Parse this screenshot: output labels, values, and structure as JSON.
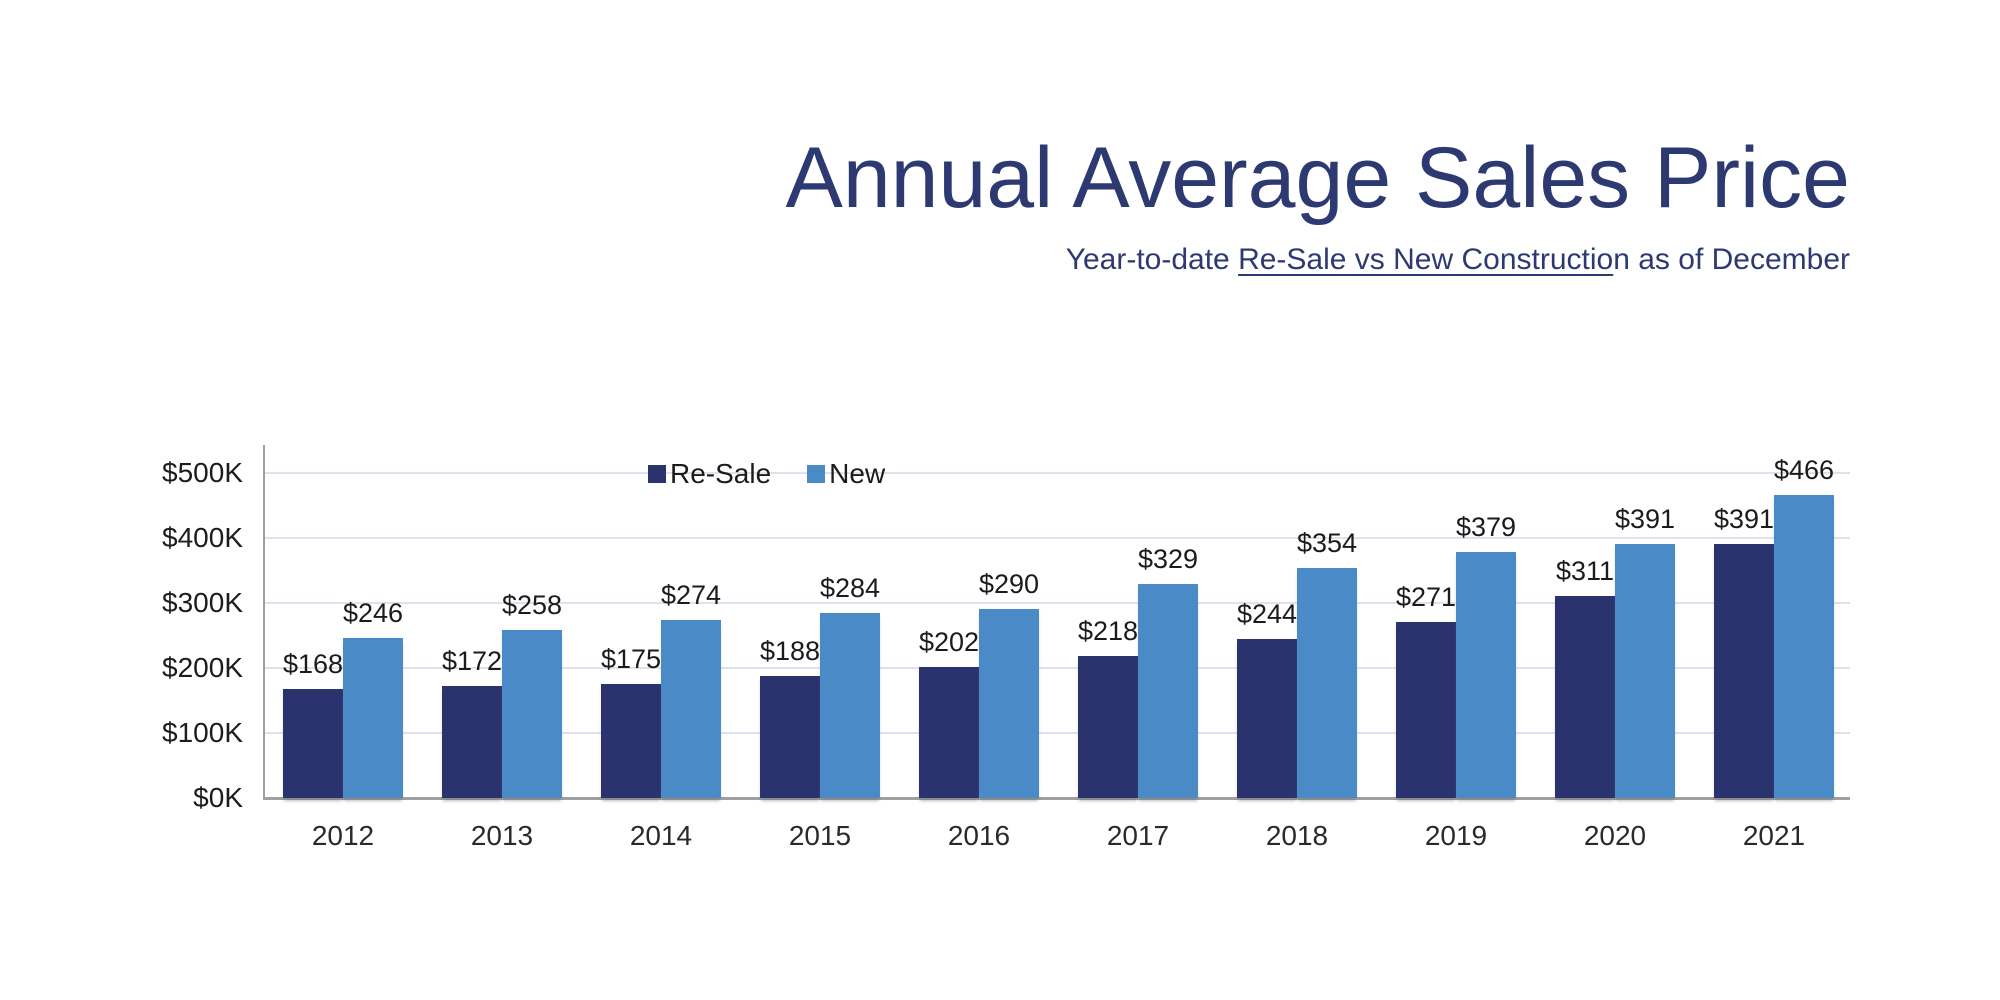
{
  "header": {
    "title": "Annual Average Sales Price",
    "subtitle_prefix": "Year-to-date ",
    "subtitle_underlined": "Re-Sale vs New Constructio",
    "subtitle_suffix": "n as of December"
  },
  "chart_data": {
    "type": "bar",
    "title": "Annual Average Sales Price",
    "subtitle": "Year-to-date Re-Sale vs New Construction as of December",
    "categories": [
      "2012",
      "2013",
      "2014",
      "2015",
      "2016",
      "2017",
      "2018",
      "2019",
      "2020",
      "2021"
    ],
    "series": [
      {
        "name": "Re-Sale",
        "color": "#2b336e",
        "values": [
          168,
          172,
          175,
          188,
          202,
          218,
          244,
          271,
          311,
          391
        ]
      },
      {
        "name": "New",
        "color": "#4a8bc7",
        "values": [
          246,
          258,
          274,
          284,
          290,
          329,
          354,
          379,
          391,
          466
        ]
      }
    ],
    "value_prefix": "$",
    "value_unit": "K",
    "y_ticks": [
      "$0K",
      "$100K",
      "$200K",
      "$300K",
      "$400K",
      "$500K"
    ],
    "ylim": [
      0,
      500
    ],
    "grid": true,
    "legend_position": "top-center"
  },
  "colors": {
    "title_text": "#2d3a72",
    "label_text": "#1b1b1b",
    "gridline": "#dde3ee",
    "axis_line": "#9e9fa3",
    "background": "#ffffff"
  }
}
